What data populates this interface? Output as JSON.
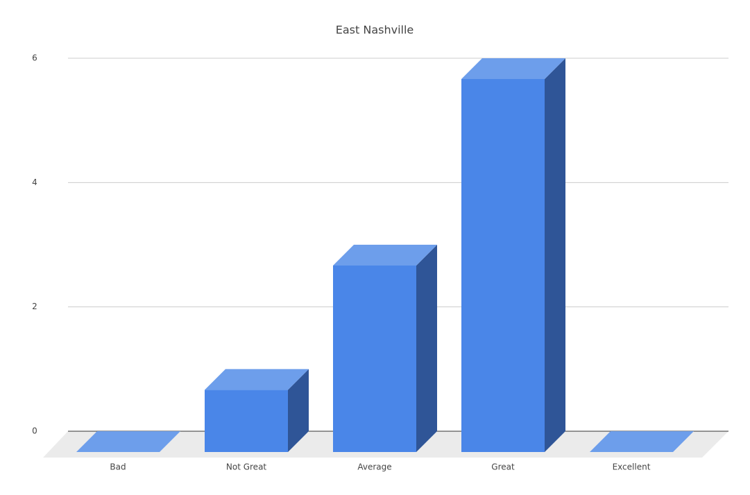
{
  "chart_data": {
    "type": "bar3d",
    "title": "East Nashville",
    "categories": [
      "Bad",
      "Not Great",
      "Average",
      "Great",
      "Excellent"
    ],
    "values": [
      0,
      1,
      3,
      6,
      0
    ],
    "color": "#4a86e8",
    "ylim": [
      0,
      6
    ],
    "yticks": [
      0,
      2,
      4,
      6
    ],
    "grid": true
  }
}
